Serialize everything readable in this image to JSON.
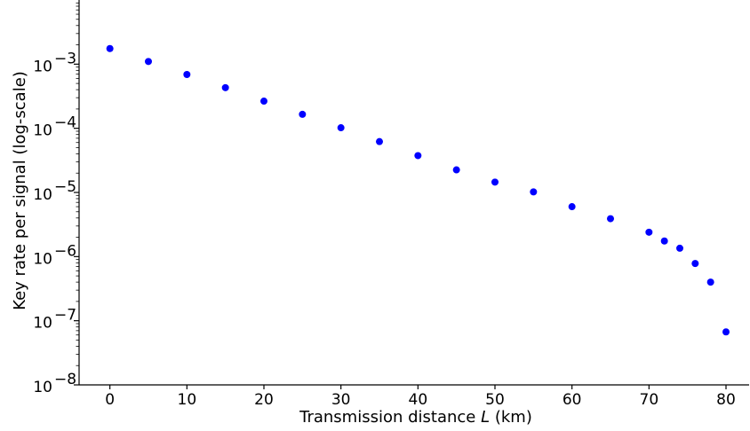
{
  "chart_data": {
    "type": "scatter",
    "title": "",
    "xlabel_prefix": "Transmission distance ",
    "xlabel_var": "L",
    "xlabel_suffix": " (km)",
    "ylabel": "Key rate per signal (log-scale)",
    "xlim": [
      -4,
      83
    ],
    "ylim": [
      1e-08,
      0.01
    ],
    "yscale": "log",
    "grid": false,
    "legend": "none",
    "marker_color": "#0000ff",
    "x_ticks": [
      0,
      10,
      20,
      30,
      40,
      50,
      60,
      70,
      80
    ],
    "y_ticks": [
      {
        "value": 1e-08,
        "mantissa": "10",
        "exp": "−8"
      },
      {
        "value": 1e-07,
        "mantissa": "10",
        "exp": "−7"
      },
      {
        "value": 1e-06,
        "mantissa": "10",
        "exp": "−6"
      },
      {
        "value": 1e-05,
        "mantissa": "10",
        "exp": "−5"
      },
      {
        "value": 0.0001,
        "mantissa": "10",
        "exp": "−4"
      },
      {
        "value": 0.001,
        "mantissa": "10",
        "exp": "−3"
      }
    ],
    "points": [
      {
        "x": 0,
        "y": 0.00175
      },
      {
        "x": 5,
        "y": 0.0011
      },
      {
        "x": 10,
        "y": 0.00069
      },
      {
        "x": 15,
        "y": 0.00043
      },
      {
        "x": 20,
        "y": 0.000265
      },
      {
        "x": 25,
        "y": 0.000165
      },
      {
        "x": 30,
        "y": 0.000102
      },
      {
        "x": 35,
        "y": 6.2e-05
      },
      {
        "x": 40,
        "y": 3.75e-05
      },
      {
        "x": 45,
        "y": 2.25e-05
      },
      {
        "x": 50,
        "y": 1.45e-05
      },
      {
        "x": 55,
        "y": 1.02e-05
      },
      {
        "x": 60,
        "y": 6e-06
      },
      {
        "x": 65,
        "y": 3.9e-06
      },
      {
        "x": 70,
        "y": 2.4e-06
      },
      {
        "x": 72,
        "y": 1.75e-06
      },
      {
        "x": 74,
        "y": 1.35e-06
      },
      {
        "x": 76,
        "y": 7.8e-07
      },
      {
        "x": 78,
        "y": 4e-07
      },
      {
        "x": 80,
        "y": 6.7e-08
      }
    ]
  }
}
